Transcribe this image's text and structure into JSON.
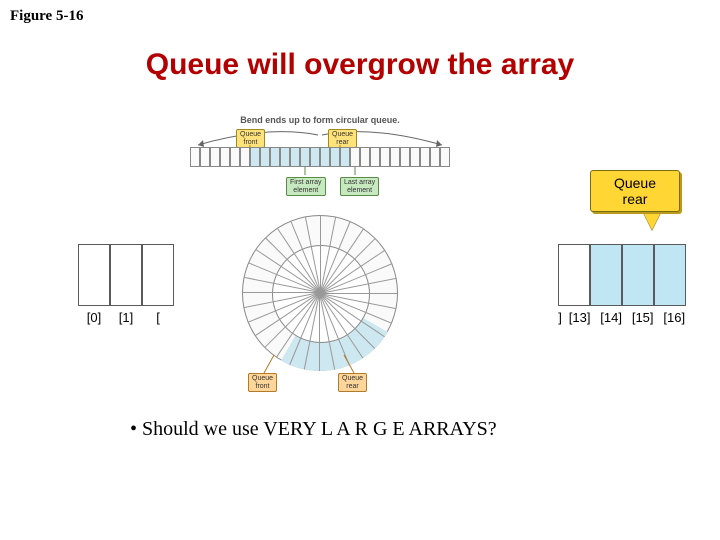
{
  "figure_label": "Figure 5-16",
  "title": "Queue will overgrow the array",
  "bullet": "•  Should we use VERY  L A R G E  ARRAYS?",
  "left_array": {
    "cells": 3,
    "labels": [
      "[0]",
      "[1]",
      "["
    ],
    "cell_color": "#ffffff",
    "border_color": "#5a5a5a"
  },
  "right_array": {
    "cells": 4,
    "fill_indices": [
      1,
      2,
      3
    ],
    "labels": [
      "]",
      "[13]",
      "[14]",
      "[15]",
      "[16]"
    ],
    "fill_color": "#bfe6f2",
    "empty_color": "#ffffff",
    "border_color": "#5a5a5a"
  },
  "callout": {
    "line1": "Queue",
    "line2": "rear",
    "bg": "#ffd633",
    "border": "#7a6a10"
  },
  "mid": {
    "caption": "Bend ends up to form circular queue.",
    "linear_cells": 26,
    "linear_filled_start": 6,
    "linear_filled_end": 15,
    "tag_front": "Queue\nfront",
    "tag_rear": "Queue\nrear",
    "tag_first": "First array\nelement",
    "tag_last": "Last array\nelement",
    "bottom_front": "Queue\nfront",
    "bottom_rear": "Queue\nrear",
    "ring_spokes": 32,
    "ring_filled_start_deg": 120,
    "ring_filled_end_deg": 210
  },
  "colors": {
    "title": "#b30000",
    "bg": "#ffffff"
  }
}
